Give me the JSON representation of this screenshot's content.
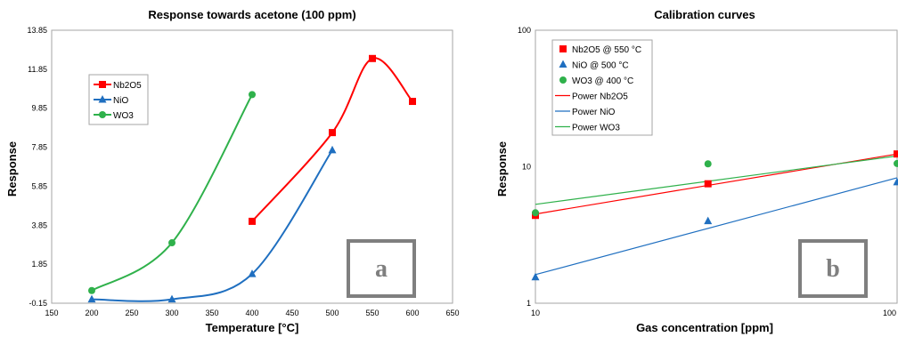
{
  "chart_data": [
    {
      "type": "line",
      "title": "Response towards acetone (100 ppm)",
      "xlabel": "Temperature [°C]",
      "ylabel": "Response",
      "xlim": [
        150,
        650
      ],
      "ylim": [
        -0.15,
        13.85
      ],
      "xticks": [
        150,
        200,
        250,
        300,
        350,
        400,
        450,
        500,
        550,
        600,
        650
      ],
      "yticks": [
        "-0.15",
        "1.85",
        "3.85",
        "5.85",
        "7.85",
        "9.85",
        "11.85",
        "13.85"
      ],
      "legend_position": "top-left",
      "series": [
        {
          "name": "Nb2O5",
          "color": "#ff0000",
          "marker": "square",
          "x": [
            400,
            500,
            550,
            600
          ],
          "y": [
            4.05,
            8.6,
            12.4,
            10.2
          ]
        },
        {
          "name": "NiO",
          "color": "#1f6fc0",
          "marker": "triangle",
          "x": [
            200,
            300,
            400,
            500
          ],
          "y": [
            0.05,
            0.05,
            1.35,
            7.7
          ]
        },
        {
          "name": "WO3",
          "color": "#2fb14b",
          "marker": "circle",
          "x": [
            200,
            300,
            400
          ],
          "y": [
            0.5,
            2.95,
            10.55
          ]
        }
      ],
      "panel_label": "a"
    },
    {
      "type": "scatter",
      "title": "Calibration curves",
      "xlabel": "Gas concentration [ppm]",
      "ylabel": "Response",
      "xscale": "log",
      "yscale": "log",
      "xlim": [
        10,
        100
      ],
      "ylim": [
        1,
        100
      ],
      "xticks": [
        "10",
        "100"
      ],
      "yticks": [
        "1",
        "10",
        "100"
      ],
      "legend_position": "top-left",
      "series": [
        {
          "name": "Nb2O5 @ 550 °C",
          "color": "#ff0000",
          "marker": "square",
          "x": [
            10,
            30,
            100
          ],
          "y": [
            4.4,
            7.5,
            12.4
          ]
        },
        {
          "name": "NiO @ 500 °C",
          "color": "#1f6fc0",
          "marker": "triangle",
          "x": [
            10,
            30,
            100
          ],
          "y": [
            1.55,
            4.0,
            7.7
          ]
        },
        {
          "name": "WO3 @ 400 °C",
          "color": "#2fb14b",
          "marker": "circle",
          "x": [
            10,
            30,
            100
          ],
          "y": [
            4.6,
            10.5,
            10.55
          ]
        }
      ],
      "fits": [
        {
          "name": "Power Nb2O5",
          "color": "#ff0000",
          "x": [
            10,
            100
          ],
          "y": [
            4.5,
            12.4
          ]
        },
        {
          "name": "Power NiO",
          "color": "#1f6fc0",
          "x": [
            10,
            100
          ],
          "y": [
            1.62,
            8.3
          ]
        },
        {
          "name": "Power WO3",
          "color": "#2fb14b",
          "x": [
            10,
            100
          ],
          "y": [
            5.3,
            12.0
          ]
        }
      ],
      "panel_label": "b"
    }
  ]
}
